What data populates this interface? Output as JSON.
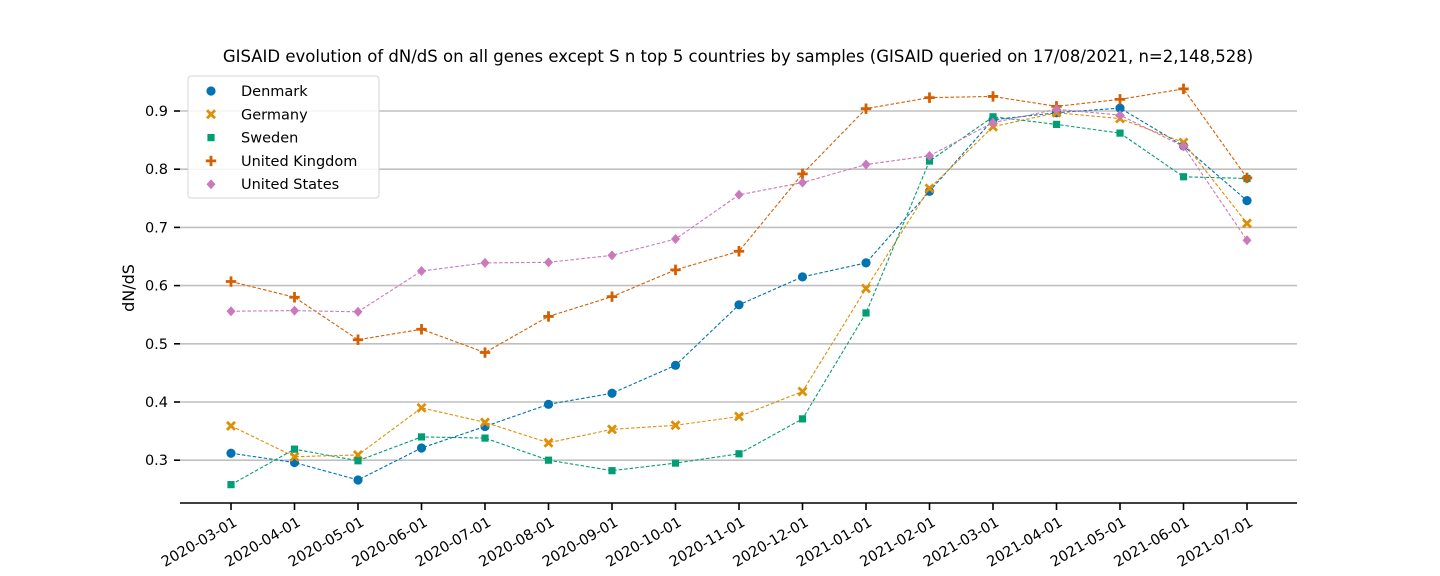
{
  "chart_data": {
    "type": "line",
    "title": "GISAID evolution of dN/dS on all genes except S n top 5 countries by samples (GISAID queried on 17/08/2021, n=2,148,528)",
    "xlabel": "",
    "ylabel": "dN/dS",
    "ylim": [
      0.225,
      0.955
    ],
    "yticks": [
      0.3,
      0.4,
      0.5,
      0.6,
      0.7,
      0.8,
      0.9
    ],
    "ytick_labels": [
      "0.3",
      "0.4",
      "0.5",
      "0.6",
      "0.7",
      "0.8",
      "0.9"
    ],
    "grid": "horizontal",
    "legend_position": "top-left",
    "x": [
      "2020-03-01",
      "2020-04-01",
      "2020-05-01",
      "2020-06-01",
      "2020-07-01",
      "2020-08-01",
      "2020-09-01",
      "2020-10-01",
      "2020-11-01",
      "2020-12-01",
      "2021-01-01",
      "2021-02-01",
      "2021-03-01",
      "2021-04-01",
      "2021-05-01",
      "2021-06-01",
      "2021-07-01"
    ],
    "series": [
      {
        "name": "Denmark",
        "color": "#0173b2",
        "marker": "circle",
        "values": [
          0.312,
          0.296,
          0.266,
          0.321,
          0.358,
          0.396,
          0.415,
          0.463,
          0.567,
          0.615,
          0.639,
          0.762,
          0.885,
          0.897,
          0.905,
          0.84,
          0.746
        ]
      },
      {
        "name": "Germany",
        "color": "#de8f05",
        "marker": "x",
        "values": [
          0.359,
          0.306,
          0.309,
          0.39,
          0.365,
          0.33,
          0.353,
          0.36,
          0.375,
          0.418,
          0.595,
          0.767,
          0.873,
          0.897,
          0.887,
          0.846,
          0.707
        ]
      },
      {
        "name": "Sweden",
        "color": "#029e73",
        "marker": "square",
        "values": [
          0.258,
          0.319,
          0.299,
          0.34,
          0.338,
          0.3,
          0.282,
          0.295,
          0.311,
          0.371,
          0.553,
          0.814,
          0.89,
          0.877,
          0.862,
          0.787,
          0.784
        ]
      },
      {
        "name": "United Kingdom",
        "color": "#d55e00",
        "marker": "plus",
        "values": [
          0.607,
          0.58,
          0.507,
          0.525,
          0.485,
          0.547,
          0.581,
          0.627,
          0.659,
          0.792,
          0.904,
          0.923,
          0.925,
          0.908,
          0.92,
          0.938,
          0.785
        ]
      },
      {
        "name": "United States",
        "color": "#cc78bc",
        "marker": "diamond",
        "values": [
          0.556,
          0.557,
          0.555,
          0.625,
          0.639,
          0.64,
          0.652,
          0.68,
          0.756,
          0.777,
          0.808,
          0.823,
          0.88,
          0.903,
          0.893,
          0.839,
          0.678
        ]
      }
    ]
  }
}
